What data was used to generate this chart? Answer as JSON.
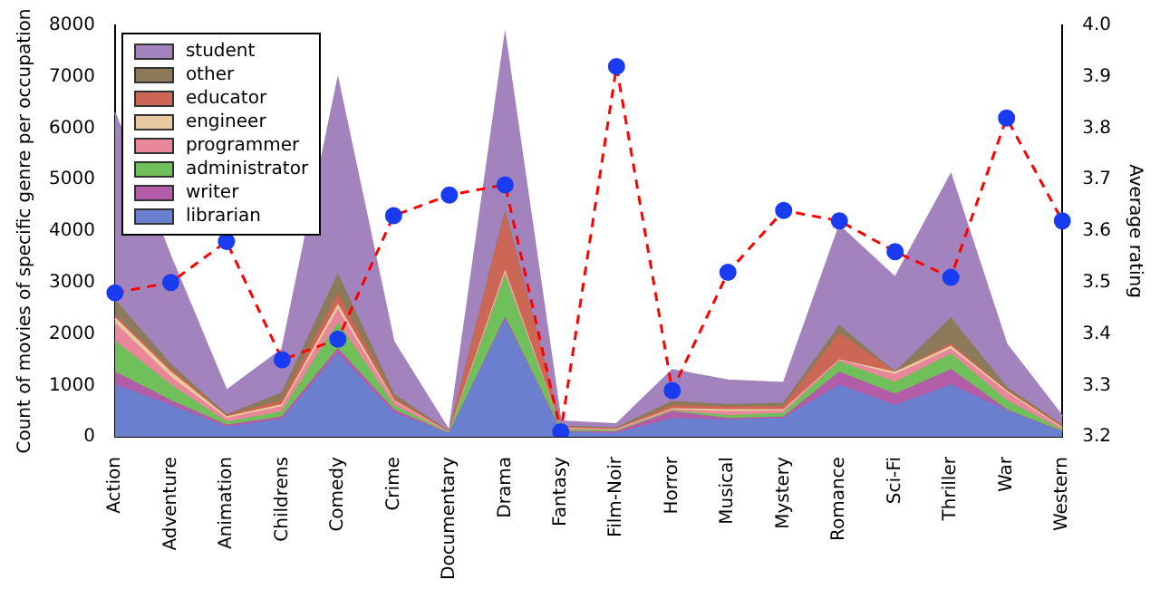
{
  "chart_data": {
    "type": "area",
    "stacked": true,
    "categories": [
      "Action",
      "Adventure",
      "Animation",
      "Childrens",
      "Comedy",
      "Crime",
      "Documentary",
      "Drama",
      "Fantasy",
      "Film-Noir",
      "Horror",
      "Musical",
      "Mystery",
      "Romance",
      "Sci-Fi",
      "Thriller",
      "War",
      "Western"
    ],
    "ylabel": "Count of movies of specific genre per occupation",
    "y2label": "Average rating",
    "ylim": [
      0,
      8000
    ],
    "yticks": [
      0,
      1000,
      2000,
      3000,
      4000,
      5000,
      6000,
      7000,
      8000
    ],
    "y2lim": [
      3.2,
      4.0
    ],
    "y2ticks": [
      3.2,
      3.3,
      3.4,
      3.5,
      3.6,
      3.7,
      3.8,
      3.9,
      {
        "value": 4.0,
        "label": "4.0"
      }
    ],
    "grid": false,
    "legend": "top left",
    "series": [
      {
        "name": "librarian",
        "color": "#6b7fcf",
        "values": [
          1000,
          600,
          180,
          330,
          1600,
          450,
          50,
          2250,
          80,
          60,
          350,
          320,
          350,
          1000,
          600,
          1000,
          500,
          80
        ]
      },
      {
        "name": "writer",
        "color": "#b35ca8",
        "values": [
          250,
          100,
          40,
          50,
          100,
          70,
          0,
          50,
          20,
          30,
          130,
          30,
          30,
          250,
          220,
          300,
          20,
          10
        ]
      },
      {
        "name": "administrator",
        "color": "#6fbf5a",
        "values": [
          600,
          300,
          60,
          100,
          500,
          80,
          10,
          800,
          30,
          20,
          20,
          50,
          70,
          200,
          230,
          300,
          180,
          30
        ]
      },
      {
        "name": "programmer",
        "color": "#e8879a",
        "values": [
          350,
          150,
          70,
          100,
          250,
          80,
          0,
          50,
          20,
          20,
          20,
          80,
          50,
          30,
          150,
          100,
          150,
          30
        ]
      },
      {
        "name": "engineer",
        "color": "#e8c9a0",
        "values": [
          100,
          100,
          30,
          40,
          100,
          20,
          10,
          50,
          10,
          10,
          20,
          40,
          20,
          10,
          50,
          50,
          30,
          20
        ]
      },
      {
        "name": "educator",
        "color": "#cc6655",
        "values": [
          50,
          50,
          20,
          80,
          200,
          50,
          10,
          1100,
          20,
          10,
          60,
          60,
          60,
          510,
          0,
          50,
          20,
          30
        ]
      },
      {
        "name": "other",
        "color": "#8c7a5a",
        "values": [
          300,
          100,
          20,
          150,
          400,
          70,
          10,
          50,
          20,
          20,
          80,
          40,
          70,
          150,
          0,
          500,
          50,
          20
        ]
      },
      {
        "name": "student",
        "color": "#a383bd",
        "values": [
          3650,
          2100,
          480,
          850,
          3800,
          1030,
          20,
          3450,
          100,
          80,
          620,
          480,
          400,
          1950,
          1850,
          2800,
          850,
          180
        ]
      },
      {
        "type": "line",
        "axis": "y2",
        "color": "#ff0000",
        "line_style": "dashed",
        "marker": "circle",
        "colors": [
          "#1a3cf0",
          "#1a3cf0",
          "#1a3cf0",
          "#1a3cf0",
          "#1a3cf0",
          "#1a3cf0",
          "#1a3cf0",
          "#1a3cf0",
          "#1a3cf0",
          "#1a3cf0",
          "#1a3cf0",
          "#1a3cf0",
          "#1a3cf0",
          "#1a3cf0",
          "#1a3cf0",
          "#1a3cf0",
          "#1a3cf0",
          "#1a3cf0"
        ],
        "values": [
          3.48,
          3.5,
          3.58,
          3.35,
          3.39,
          3.63,
          3.67,
          3.69,
          3.21,
          3.92,
          3.29,
          3.52,
          3.64,
          3.62,
          3.56,
          3.51,
          3.82,
          3.62
        ]
      }
    ]
  }
}
